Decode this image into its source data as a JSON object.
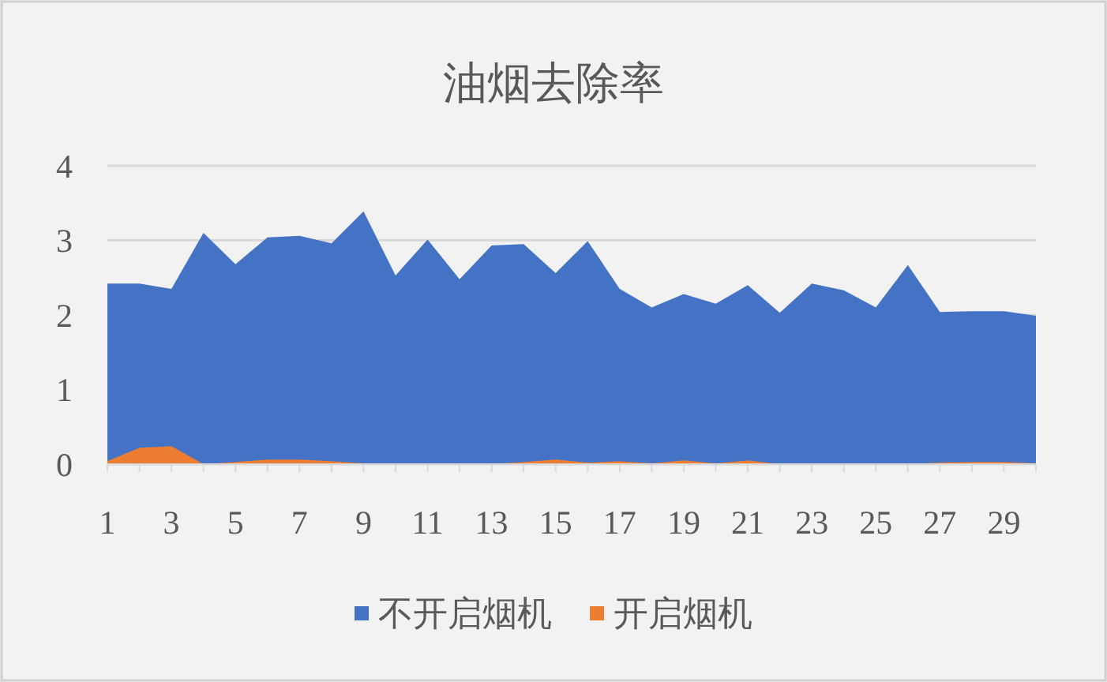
{
  "chart_data": {
    "type": "area",
    "title": "油烟去除率",
    "x": [
      1,
      2,
      3,
      4,
      5,
      6,
      7,
      8,
      9,
      10,
      11,
      12,
      13,
      14,
      15,
      16,
      17,
      18,
      19,
      20,
      21,
      22,
      23,
      24,
      25,
      26,
      27,
      28,
      29,
      30
    ],
    "series": [
      {
        "name": "不开启烟机",
        "color": "#4472c4",
        "values": [
          2.42,
          2.42,
          2.35,
          3.1,
          2.68,
          3.04,
          3.06,
          2.96,
          3.39,
          2.53,
          3.01,
          2.48,
          2.93,
          2.95,
          2.56,
          2.99,
          2.35,
          2.1,
          2.28,
          2.15,
          2.4,
          2.03,
          2.42,
          2.33,
          2.1,
          2.67,
          2.04,
          2.05,
          2.05,
          1.99
        ]
      },
      {
        "name": "开启烟机",
        "color": "#ed7d31",
        "values": [
          0.04,
          0.22,
          0.24,
          0.0,
          0.03,
          0.06,
          0.06,
          0.04,
          0.01,
          0.0,
          0.0,
          0.0,
          0.0,
          0.03,
          0.06,
          0.02,
          0.04,
          0.01,
          0.05,
          0.01,
          0.05,
          0.0,
          0.0,
          0.0,
          0.0,
          0.0,
          0.02,
          0.03,
          0.03,
          0.01
        ]
      }
    ],
    "xlim": [
      1,
      30
    ],
    "xticks": [
      1,
      {
        "value": 2,
        "label": null
      },
      3,
      {
        "value": 4,
        "label": null
      },
      5,
      {
        "value": 6,
        "label": null
      },
      7,
      {
        "value": 8,
        "label": null
      },
      9,
      {
        "value": 10,
        "label": null
      },
      11,
      {
        "value": 12,
        "label": null
      },
      13,
      {
        "value": 14,
        "label": null
      },
      15,
      {
        "value": 16,
        "label": null
      },
      17,
      {
        "value": 18,
        "label": null
      },
      19,
      {
        "value": 20,
        "label": null
      },
      21,
      {
        "value": 22,
        "label": null
      },
      23,
      {
        "value": 24,
        "label": null
      },
      25,
      {
        "value": 26,
        "label": null
      },
      27,
      {
        "value": 28,
        "label": null
      },
      29,
      {
        "value": 30,
        "label": null
      }
    ],
    "ylim": [
      0,
      4
    ],
    "yticks": [
      0,
      1,
      2,
      3,
      4
    ],
    "grid": "y",
    "legend": "bottom"
  }
}
